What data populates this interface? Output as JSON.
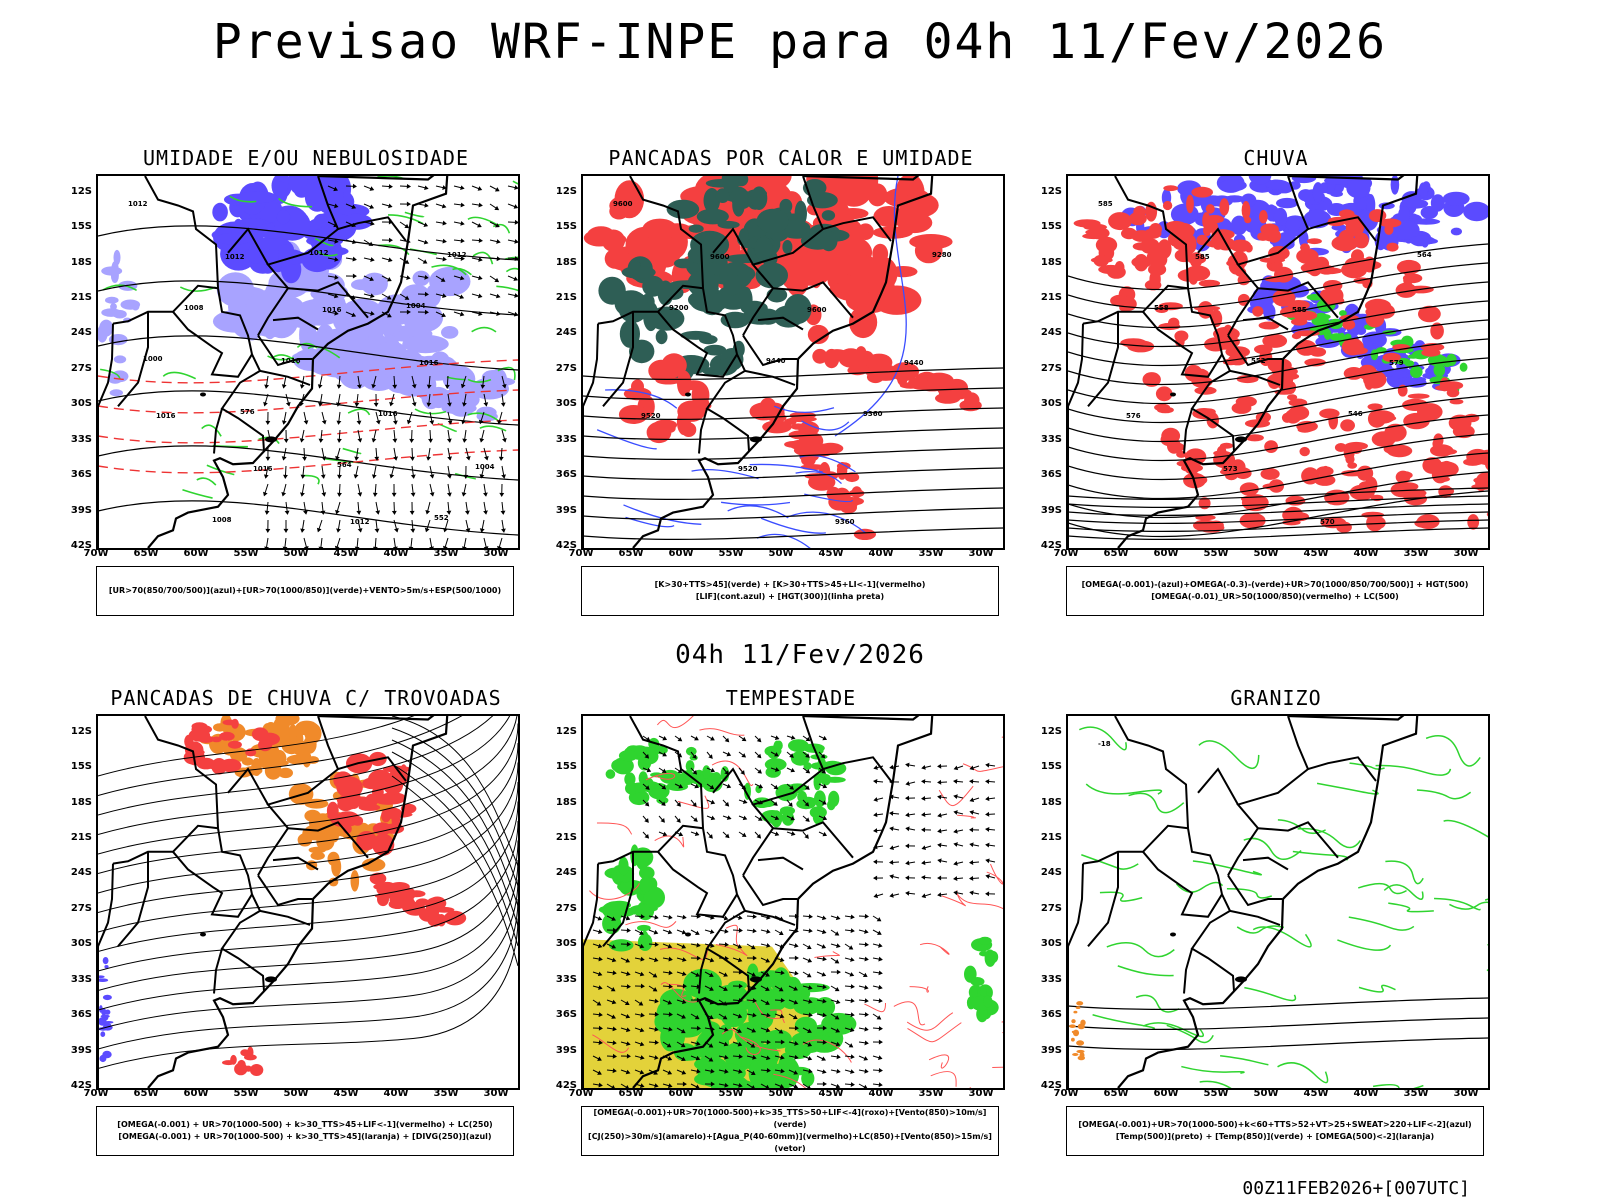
{
  "page": {
    "title": "Previsao WRF-INPE  para 04h 11/Fev/2026",
    "subtitle": "04h 11/Fev/2026",
    "footer": "00Z11FEB2026+[007UTC]"
  },
  "axes": {
    "lat_labels": [
      "12S",
      "15S",
      "18S",
      "21S",
      "24S",
      "27S",
      "30S",
      "33S",
      "36S",
      "39S",
      "42S"
    ],
    "lon_labels": [
      "70W",
      "65W",
      "60W",
      "55W",
      "50W",
      "45W",
      "40W",
      "35W",
      "30W"
    ]
  },
  "colors": {
    "blue": "#5b4bff",
    "lightblue": "#a8a3ff",
    "green": "#2fd42f",
    "red": "#f44040",
    "darkgreen": "#2e5e55",
    "orange": "#f08a2a",
    "yellow": "#e3d23a",
    "contourblue": "#3a4dff"
  },
  "panels": [
    {
      "id": "umidade",
      "title": "UMIDADE E/OU NEBULOSIDADE",
      "legend": [
        "[UR>70(850/700/500)](azul)+[UR>70(1000/850)](verde)+VENTO>5m/s+ESP(500/1000)"
      ],
      "contour_labels": [
        "1012",
        "1012",
        "1016",
        "1016",
        "1016",
        "1016",
        "1012",
        "1012",
        "1008",
        "1016",
        "1016",
        "1004",
        "1008",
        "1012",
        "1004",
        "1000",
        "576",
        "564",
        "552"
      ]
    },
    {
      "id": "pancadas_calor",
      "title": "PANCADAS POR CALOR E UMIDADE",
      "legend": [
        "[K>30+TTS>45](verde) + [K>30+TTS>45+LI<-1](vermelho)",
        "[LIF](cont.azul) + [HGT(300)](linha preta)"
      ],
      "contour_labels": [
        "9600",
        "9600",
        "9600",
        "9440",
        "9520",
        "9520",
        "9360",
        "9280",
        "9200",
        "9440",
        "9360"
      ]
    },
    {
      "id": "chuva",
      "title": "CHUVA",
      "legend": [
        "[OMEGA(-0.001)-(azul)+OMEGA(-0.3)-(verde)+UR>70(1000/850/700/500)] + HGT(500)",
        "[OMEGA(-0.01)_UR>50(1000/850)(vermelho) + LC(500)"
      ],
      "contour_labels": [
        "585",
        "585",
        "585",
        "579",
        "576",
        "573",
        "570",
        "564",
        "558",
        "552",
        "546"
      ]
    },
    {
      "id": "pancadas_trovoadas",
      "title": "PANCADAS DE CHUVA C/ TROVOADAS",
      "legend": [
        "[OMEGA(-0.001) + UR>70(1000-500) + k>30_TTS>45+LIF<-1](vermelho) + LC(250)",
        "[OMEGA(-0.001) + UR>70(1000-500) + k>30_TTS>45](laranja) + [DIVG(250)](azul)"
      ]
    },
    {
      "id": "tempestade",
      "title": "TEMPESTADE",
      "legend": [
        "[OMEGA(-0.001)+UR>70(1000-500)+k>35_TTS>50+LIF<-4](roxo)+[Vento(850)>10m/s](verde)",
        "[CJ(250)>30m/s](amarelo)+[Agua_P(40-60mm)](vermelho)+LC(850)+[Vento(850)>15m/s](vetor)"
      ]
    },
    {
      "id": "granizo",
      "title": "GRANIZO",
      "legend": [
        "[OMEGA(-0.001)+UR>70(1000-500)+k<60+TTS>52+VT>25+SWEAT>220+LIF<-2](azul)",
        "[Temp(500)](preto) + [Temp(850)](verde) + [OMEGA(500)<-2](laranja)"
      ],
      "contour_labels": [
        "-18"
      ]
    }
  ]
}
